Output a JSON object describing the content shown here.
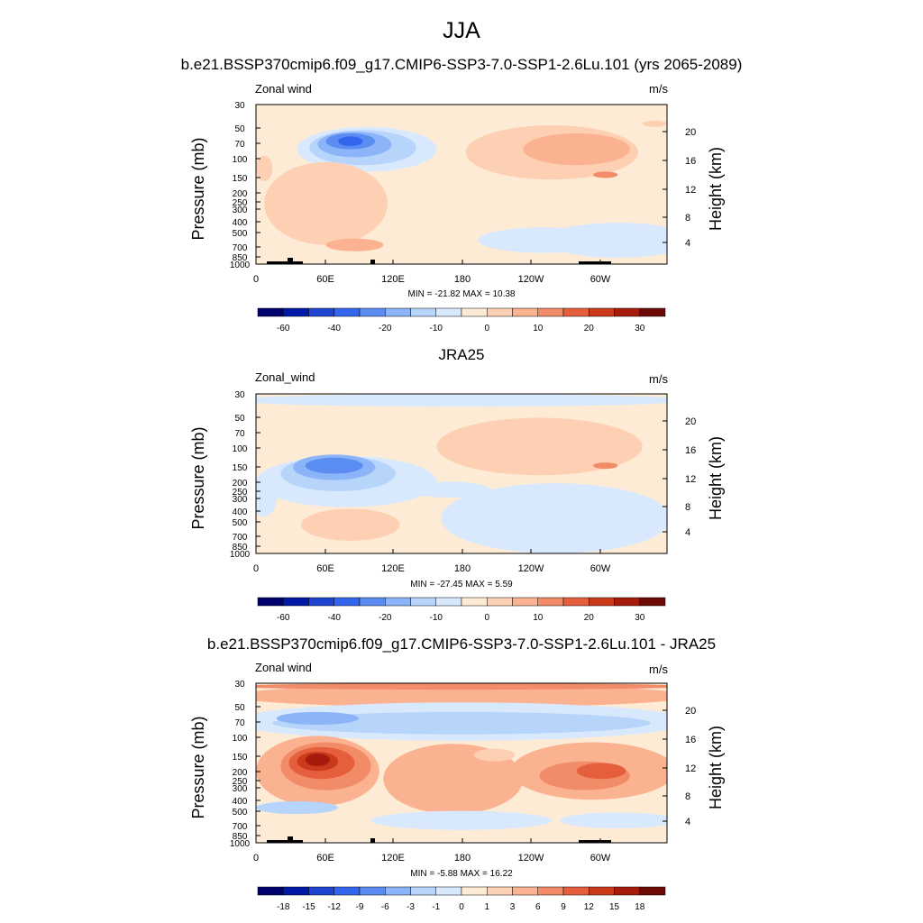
{
  "figure": {
    "title": "JJA",
    "colors": {
      "field_scale": [
        "#00006e",
        "#0019a6",
        "#1f44cf",
        "#3366ee",
        "#5a8cf2",
        "#8cb4f8",
        "#b7d4fb",
        "#d9e9fd",
        "#feebd6",
        "#fdd0b3",
        "#fbb291",
        "#f28c68",
        "#e55f3c",
        "#cc3a1c",
        "#a61b0c",
        "#6e0a05"
      ],
      "diff_scale": [
        "#00006e",
        "#0019a6",
        "#1f44cf",
        "#3366ee",
        "#5a8cf2",
        "#8cb4f8",
        "#b7d4fb",
        "#d9e9fd",
        "#feebd6",
        "#fdd0b3",
        "#fbb291",
        "#f28c68",
        "#e55f3c",
        "#cc3a1c",
        "#a61b0c",
        "#6e0a05"
      ],
      "topography": "#000000"
    }
  },
  "panels": [
    {
      "title": "b.e21.BSSP370cmip6.f09_g17.CMIP6-SSP3-7.0-SSP1-2.6Lu.101 (yrs 2065-2089)",
      "left_label": "Zonal wind",
      "units": "m/s",
      "minmax": "MIN = -21.82  MAX =  10.38",
      "colorbar_labels": [
        "-60",
        "-40",
        "-20",
        "-10",
        "0",
        "10",
        "20",
        "30"
      ]
    },
    {
      "title": "JRA25",
      "left_label": "Zonal_wind",
      "units": "m/s",
      "minmax": "MIN = -27.45  MAX =   5.59",
      "colorbar_labels": [
        "-60",
        "-40",
        "-20",
        "-10",
        "0",
        "10",
        "20",
        "30"
      ]
    },
    {
      "title": "b.e21.BSSP370cmip6.f09_g17.CMIP6-SSP3-7.0-SSP1-2.6Lu.101 - JRA25",
      "left_label": "Zonal wind",
      "units": "m/s",
      "minmax": "MIN =  -5.88  MAX =  16.22",
      "colorbar_labels": [
        "-18",
        "-15",
        "-12",
        "-9",
        "-6",
        "-3",
        "-1",
        "0",
        "1",
        "3",
        "6",
        "9",
        "12",
        "15",
        "18"
      ]
    }
  ],
  "chart_data": [
    {
      "type": "heatmap",
      "title": "b.e21.BSSP370cmip6.f09_g17.CMIP6-SSP3-7.0-SSP1-2.6Lu.101 (yrs 2065-2089)",
      "variable": "Zonal wind",
      "units": "m/s",
      "xlabel": "",
      "ylabel": "Pressure (mb)",
      "ylabel_right": "Height (km)",
      "x_ticks": [
        "0",
        "60E",
        "120E",
        "180",
        "120W",
        "60W"
      ],
      "y_ticks": [
        "30",
        "50",
        "70",
        "100",
        "150",
        "200",
        "250",
        "300",
        "400",
        "500",
        "700",
        "850",
        "1000"
      ],
      "y_right_ticks": [
        "20",
        "16",
        "12",
        "8",
        "4"
      ],
      "min": -21.82,
      "max": 10.38,
      "contour_levels": [
        -70,
        -60,
        -50,
        -40,
        -30,
        -20,
        -15,
        -10,
        -5,
        0,
        5,
        10,
        15,
        20,
        25,
        30,
        35
      ]
    },
    {
      "type": "heatmap",
      "title": "JRA25",
      "variable": "Zonal_wind",
      "units": "m/s",
      "xlabel": "",
      "ylabel": "Pressure (mb)",
      "ylabel_right": "Height (km)",
      "x_ticks": [
        "0",
        "60E",
        "120E",
        "180",
        "120W",
        "60W"
      ],
      "y_ticks": [
        "30",
        "50",
        "70",
        "100",
        "150",
        "200",
        "250",
        "300",
        "400",
        "500",
        "700",
        "850",
        "1000"
      ],
      "y_right_ticks": [
        "20",
        "16",
        "12",
        "8",
        "4"
      ],
      "min": -27.45,
      "max": 5.59,
      "contour_levels": [
        -70,
        -60,
        -50,
        -40,
        -30,
        -20,
        -15,
        -10,
        -5,
        0,
        5,
        10,
        15,
        20,
        25,
        30,
        35
      ]
    },
    {
      "type": "heatmap",
      "title": "b.e21.BSSP370cmip6.f09_g17.CMIP6-SSP3-7.0-SSP1-2.6Lu.101 - JRA25",
      "variable": "Zonal wind",
      "units": "m/s",
      "xlabel": "",
      "ylabel": "Pressure (mb)",
      "ylabel_right": "Height (km)",
      "x_ticks": [
        "0",
        "60E",
        "120E",
        "180",
        "120W",
        "60W"
      ],
      "y_ticks": [
        "30",
        "50",
        "70",
        "100",
        "150",
        "200",
        "250",
        "300",
        "400",
        "500",
        "700",
        "850",
        "1000"
      ],
      "y_right_ticks": [
        "20",
        "16",
        "12",
        "8",
        "4"
      ],
      "min": -5.88,
      "max": 16.22,
      "contour_levels": [
        -21,
        -18,
        -15,
        -12,
        -9,
        -6,
        -3,
        -1,
        0,
        1,
        3,
        6,
        9,
        12,
        15,
        18,
        21
      ]
    }
  ],
  "axis_titles": {
    "left": "Pressure (mb)",
    "right": "Height (km)"
  }
}
